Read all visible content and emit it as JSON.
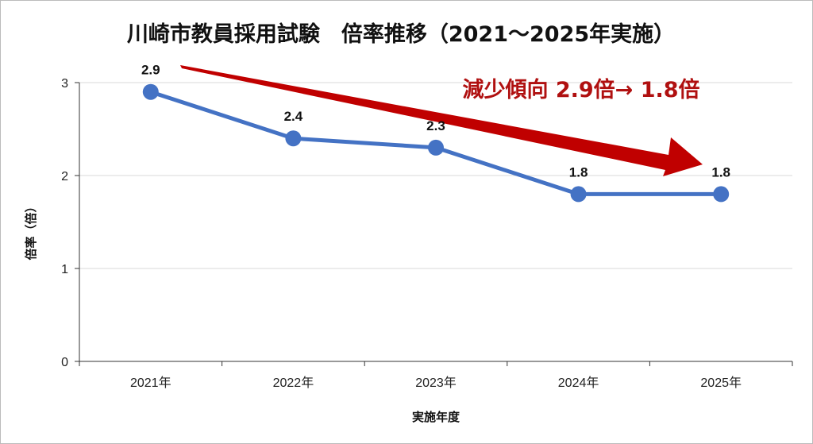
{
  "chart_data": {
    "type": "line",
    "title": "川崎市教員採用試験　倍率推移（2021〜2025年実施）",
    "xlabel": "実施年度",
    "ylabel": "倍率（倍）",
    "categories": [
      "2021年",
      "2022年",
      "2023年",
      "2024年",
      "2025年"
    ],
    "values": [
      2.9,
      2.4,
      2.3,
      1.8,
      1.8
    ],
    "data_labels": [
      "2.9",
      "2.4",
      "2.3",
      "1.8",
      "1.8"
    ],
    "ylim": [
      0,
      3
    ],
    "yticks": [
      "0",
      "1",
      "2",
      "3"
    ],
    "grid": true,
    "legend": "none",
    "annotation": "減少傾向 2.9倍→ 1.8倍",
    "colors": {
      "line": "#4472c4",
      "arrow": "#c00000",
      "annotation": "#b01010"
    }
  }
}
